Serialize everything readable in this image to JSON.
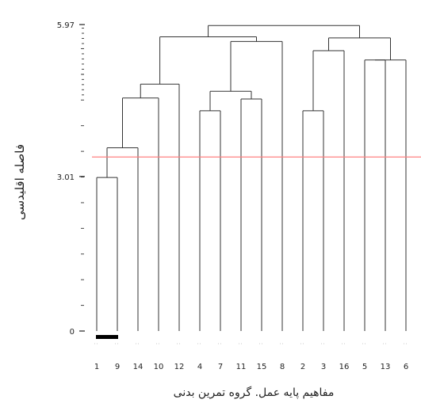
{
  "chart_data": {
    "type": "dendrogram",
    "ylabel": "فاصله اقلیدسی",
    "xlabel": "مفاهیم پایه عمل. گروه تمرین بدنی",
    "y_ticks": [
      {
        "value": 0,
        "label": "0"
      },
      {
        "value": 3.01,
        "label": "3.01"
      },
      {
        "value": 5.97,
        "label": "5.97"
      }
    ],
    "ylim": [
      0,
      5.97
    ],
    "leaf_order": [
      "1",
      "9",
      "14",
      "10",
      "12",
      "4",
      "7",
      "11",
      "15",
      "8",
      "2",
      "3",
      "16",
      "5",
      "13",
      "6"
    ],
    "cutoff_line": {
      "value": 3.39,
      "color": "#ff8080"
    },
    "merges": [
      {
        "left": "1",
        "right": "9",
        "height": 2.99
      },
      {
        "left": "1-9",
        "right": "14",
        "height": 3.57
      },
      {
        "left": "1-9-14",
        "right": "10",
        "height": 4.54
      },
      {
        "left": "1-9-14-10",
        "right": "12",
        "height": 4.81
      },
      {
        "left": "4",
        "right": "7",
        "height": 4.29
      },
      {
        "left": "11",
        "right": "15",
        "height": 4.52
      },
      {
        "left": "4-7",
        "right": "11-15",
        "height": 4.67
      },
      {
        "left": "4-7-11-15",
        "right": "8",
        "height": 5.64
      },
      {
        "left": "cluster-A",
        "right": "cluster-B",
        "height": 5.73
      },
      {
        "left": "2",
        "right": "3",
        "height": 4.29
      },
      {
        "left": "2-3",
        "right": "16",
        "height": 5.46
      },
      {
        "left": "5",
        "right": "13",
        "height": 5.28
      },
      {
        "left": "5-13",
        "right": "6",
        "height": 5.28
      },
      {
        "left": "2-3-16",
        "right": "5-13-6",
        "height": 5.71
      },
      {
        "left": "left-group",
        "right": "right-group",
        "height": 5.95
      }
    ]
  }
}
